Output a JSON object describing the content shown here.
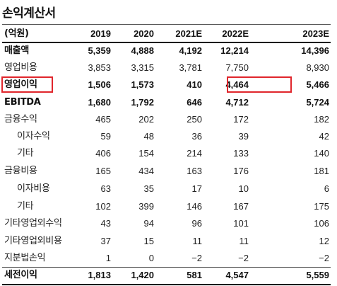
{
  "title": "손익계산서",
  "columns": [
    "(억원)",
    "2019",
    "2020",
    "2021E",
    "2022E",
    "2023E"
  ],
  "rows": [
    {
      "label": "매출액",
      "values": [
        "5,359",
        "4,888",
        "4,192",
        "12,214",
        "14,396"
      ],
      "bold": true,
      "indent": 0
    },
    {
      "label": "영업비용",
      "values": [
        "3,853",
        "3,315",
        "3,781",
        "7,750",
        "8,930"
      ],
      "bold": false,
      "indent": 0
    },
    {
      "label": "영업이익",
      "values": [
        "1,506",
        "1,573",
        "410",
        "4,464",
        "5,466"
      ],
      "bold": true,
      "indent": 0
    },
    {
      "label": "EBITDA",
      "values": [
        "1,680",
        "1,792",
        "646",
        "4,712",
        "5,724"
      ],
      "bold": true,
      "indent": 0
    },
    {
      "label": "금융수익",
      "values": [
        "465",
        "202",
        "250",
        "172",
        "182"
      ],
      "bold": false,
      "indent": 0
    },
    {
      "label": "이자수익",
      "values": [
        "59",
        "48",
        "36",
        "39",
        "42"
      ],
      "bold": false,
      "indent": 1
    },
    {
      "label": "기타",
      "values": [
        "406",
        "154",
        "214",
        "133",
        "140"
      ],
      "bold": false,
      "indent": 1
    },
    {
      "label": "금융비용",
      "values": [
        "165",
        "434",
        "163",
        "176",
        "181"
      ],
      "bold": false,
      "indent": 0
    },
    {
      "label": "이자비용",
      "values": [
        "63",
        "35",
        "17",
        "10",
        "6"
      ],
      "bold": false,
      "indent": 1
    },
    {
      "label": "기타",
      "values": [
        "102",
        "399",
        "146",
        "167",
        "175"
      ],
      "bold": false,
      "indent": 1
    },
    {
      "label": "기타영업외수익",
      "values": [
        "43",
        "94",
        "96",
        "101",
        "106"
      ],
      "bold": false,
      "indent": 0
    },
    {
      "label": "기타영업외비용",
      "values": [
        "37",
        "15",
        "11",
        "11",
        "12"
      ],
      "bold": false,
      "indent": 0
    },
    {
      "label": "지분법손익",
      "values": [
        "1",
        "0",
        "−2",
        "−2",
        "−2"
      ],
      "bold": false,
      "indent": 0
    },
    {
      "label": "세전이익",
      "values": [
        "1,813",
        "1,420",
        "581",
        "4,547",
        "5,559"
      ],
      "bold": true,
      "indent": 0
    }
  ],
  "highlight_color": "#e0262c"
}
